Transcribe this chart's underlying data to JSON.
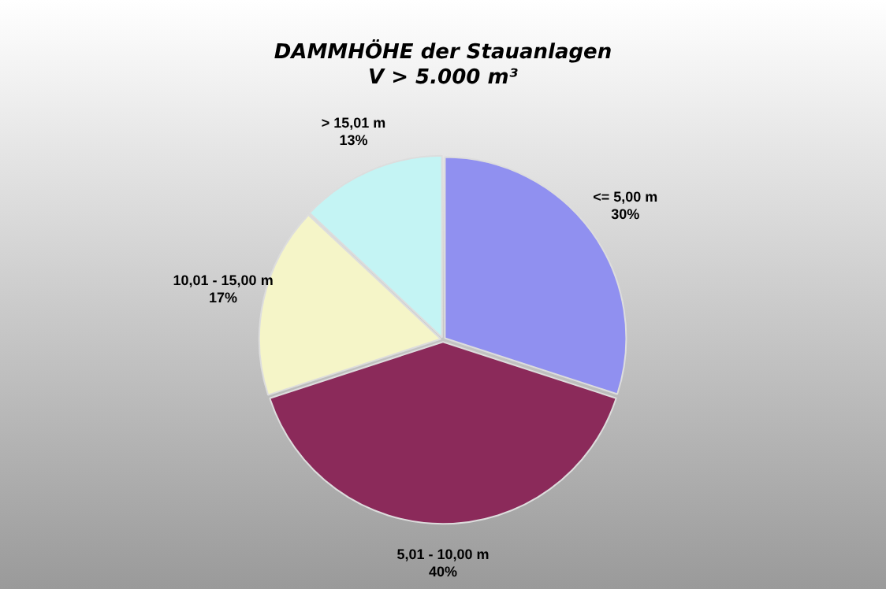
{
  "chart_data": {
    "type": "pie",
    "title": "DAMMHÖHE der Stauanlagen",
    "subtitle": "V > 5.000 m³",
    "categories": [
      "<= 5,00 m",
      "5,01 - 10,00 m",
      "10,01 - 15,00 m",
      "> 15,01 m"
    ],
    "values": [
      30,
      40,
      17,
      13
    ],
    "value_labels": [
      "30%",
      "40%",
      "17%",
      "13%"
    ],
    "colors": [
      "#9090f0",
      "#8b2a5a",
      "#f5f5c8",
      "#c4f4f4"
    ],
    "legend": false
  }
}
